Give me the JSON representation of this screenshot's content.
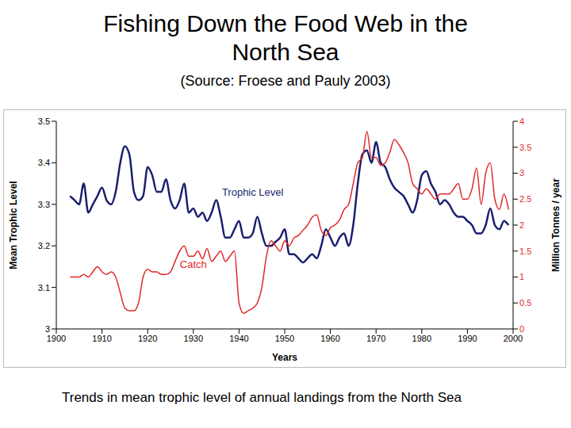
{
  "chart_data": {
    "type": "line",
    "title": "Fishing Down the Food Web in the North Sea",
    "subtitle": "(Source: Froese and Pauly 2003)",
    "caption": "Trends in mean trophic level of annual landings from the North Sea",
    "x_label": "Years",
    "y_label": "Mean Trophic Level",
    "y2_label": "Million Tonnes / year",
    "x": [
      1903,
      1904,
      1905,
      1906,
      1907,
      1908,
      1909,
      1910,
      1911,
      1912,
      1913,
      1914,
      1915,
      1916,
      1917,
      1918,
      1919,
      1920,
      1921,
      1922,
      1923,
      1924,
      1925,
      1926,
      1927,
      1928,
      1929,
      1930,
      1931,
      1932,
      1933,
      1934,
      1935,
      1936,
      1937,
      1938,
      1939,
      1940,
      1941,
      1942,
      1943,
      1944,
      1945,
      1946,
      1947,
      1948,
      1949,
      1950,
      1951,
      1952,
      1953,
      1954,
      1955,
      1956,
      1957,
      1958,
      1959,
      1960,
      1961,
      1962,
      1963,
      1964,
      1965,
      1966,
      1967,
      1968,
      1969,
      1970,
      1971,
      1972,
      1973,
      1974,
      1975,
      1976,
      1977,
      1978,
      1979,
      1980,
      1981,
      1982,
      1983,
      1984,
      1985,
      1986,
      1987,
      1988,
      1989,
      1990,
      1991,
      1992,
      1993,
      1994,
      1995,
      1996,
      1997,
      1998,
      1999
    ],
    "series": [
      {
        "name": "Trophic Level",
        "color": "#1a1f6e",
        "values": [
          3.32,
          3.31,
          3.3,
          3.35,
          3.28,
          3.3,
          3.32,
          3.34,
          3.31,
          3.3,
          3.33,
          3.4,
          3.44,
          3.42,
          3.33,
          3.31,
          3.32,
          3.39,
          3.37,
          3.33,
          3.33,
          3.36,
          3.31,
          3.29,
          3.31,
          3.35,
          3.28,
          3.29,
          3.27,
          3.28,
          3.26,
          3.28,
          3.31,
          3.27,
          3.22,
          3.22,
          3.24,
          3.26,
          3.22,
          3.22,
          3.23,
          3.27,
          3.23,
          3.2,
          3.2,
          3.21,
          3.22,
          3.24,
          3.18,
          3.18,
          3.17,
          3.16,
          3.17,
          3.18,
          3.17,
          3.2,
          3.24,
          3.22,
          3.2,
          3.22,
          3.23,
          3.2,
          3.25,
          3.35,
          3.42,
          3.43,
          3.4,
          3.45,
          3.4,
          3.39,
          3.36,
          3.34,
          3.33,
          3.32,
          3.3,
          3.28,
          3.31,
          3.37,
          3.38,
          3.35,
          3.33,
          3.3,
          3.31,
          3.3,
          3.28,
          3.27,
          3.27,
          3.26,
          3.25,
          3.23,
          3.23,
          3.25,
          3.29,
          3.25,
          3.24,
          3.26,
          3.25
        ]
      },
      {
        "name": "Catch",
        "color": "#e02828",
        "axis": "y2",
        "values": [
          1.0,
          1.0,
          1.0,
          1.05,
          1.0,
          1.1,
          1.2,
          1.1,
          1.05,
          1.1,
          1.0,
          0.7,
          0.4,
          0.35,
          0.35,
          0.5,
          1.0,
          1.15,
          1.1,
          1.1,
          1.05,
          1.05,
          1.1,
          1.3,
          1.5,
          1.6,
          1.4,
          1.4,
          1.5,
          1.35,
          1.55,
          1.3,
          1.4,
          1.5,
          1.3,
          1.4,
          1.5,
          0.5,
          0.3,
          0.35,
          0.4,
          0.5,
          0.8,
          1.4,
          1.7,
          1.6,
          1.5,
          1.7,
          1.6,
          1.75,
          1.8,
          1.9,
          2.0,
          2.15,
          2.2,
          1.9,
          1.8,
          1.95,
          2.0,
          2.1,
          2.3,
          2.4,
          2.8,
          3.2,
          3.3,
          3.8,
          3.3,
          3.3,
          3.15,
          3.2,
          3.4,
          3.65,
          3.55,
          3.4,
          3.2,
          2.8,
          2.7,
          2.6,
          2.7,
          2.6,
          2.5,
          2.6,
          2.6,
          2.6,
          2.7,
          2.8,
          2.5,
          2.5,
          2.7,
          3.1,
          2.4,
          3.0,
          3.2,
          2.5,
          2.3,
          2.6,
          2.3
        ]
      }
    ],
    "annotations": [
      {
        "text": "Trophic Level",
        "x": 1943,
        "y": 3.33,
        "color": "#1a1f6e"
      },
      {
        "text": "Catch",
        "x": 1930,
        "y": 3.155,
        "color": "#e02828"
      }
    ],
    "xlim": [
      1900,
      2000
    ],
    "xticks": [
      1900,
      1910,
      1920,
      1930,
      1940,
      1950,
      1960,
      1970,
      1980,
      1990,
      2000
    ],
    "ylim": [
      3,
      3.5
    ],
    "yticks": [
      3,
      3.1,
      3.2,
      3.3,
      3.4,
      3.5
    ],
    "y2lim": [
      0,
      4
    ],
    "y2ticks": [
      0,
      0.5,
      1,
      1.5,
      2,
      2.5,
      3,
      3.5,
      4
    ],
    "grid": false
  }
}
